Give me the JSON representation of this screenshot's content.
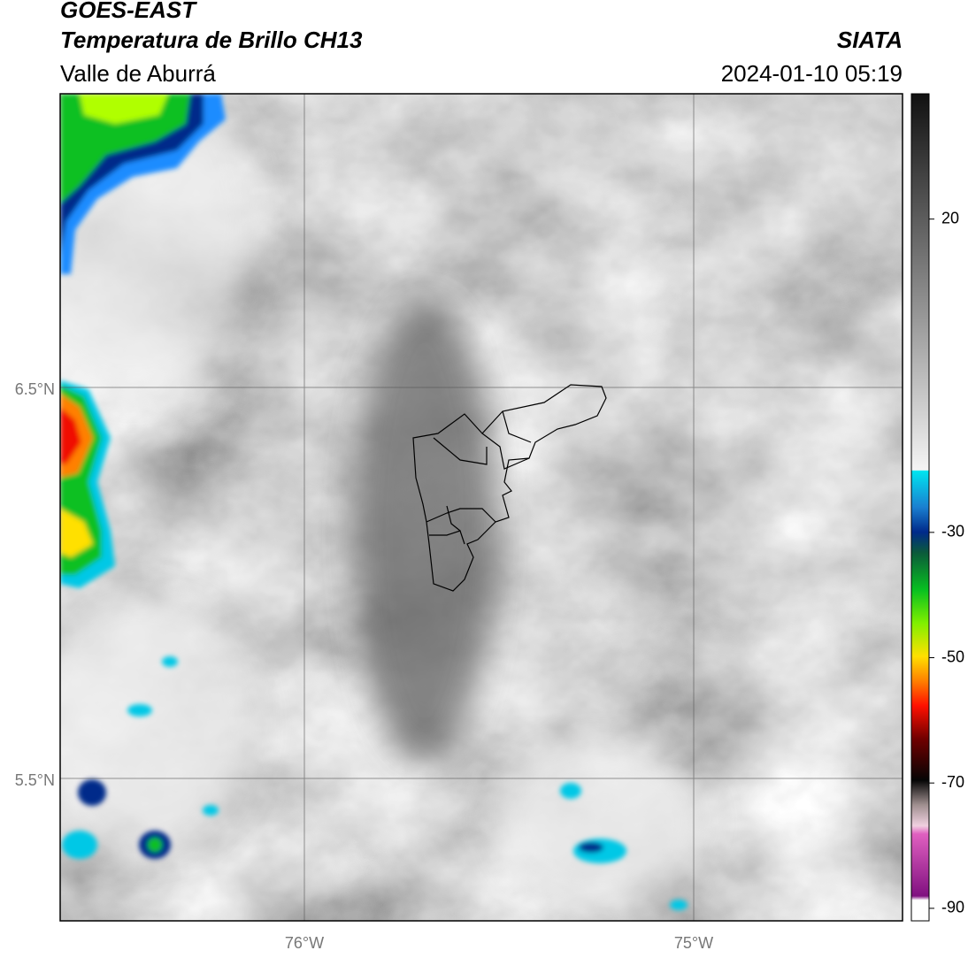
{
  "header": {
    "satellite": "GOES-EAST",
    "product": "Temperatura de Brillo CH13",
    "region": "Valle de Aburrá",
    "agency": "SIATA",
    "timestamp": "2024-01-10 05:19"
  },
  "map": {
    "lat_labels": [
      "6.5°N",
      "5.5°N"
    ],
    "lon_labels": [
      "76°W",
      "75°W"
    ]
  },
  "colorbar": {
    "range": [
      -92,
      40
    ],
    "ticks": [
      20,
      -30,
      -50,
      -70,
      -90
    ]
  }
}
